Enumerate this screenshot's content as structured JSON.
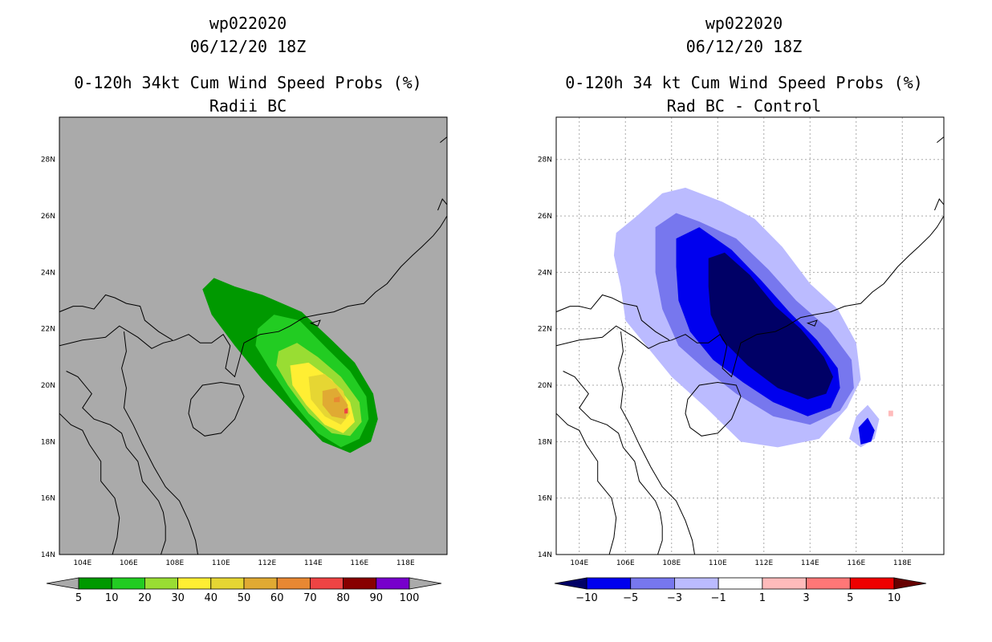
{
  "chart_data": [
    {
      "type": "heatmap",
      "title_lines": [
        "wp022020",
        "06/12/20 18Z",
        "0-120h 34kt Cum Wind Speed Probs (%)",
        "Radii BC"
      ],
      "x_ticks": [
        "104E",
        "106E",
        "108E",
        "110E",
        "112E",
        "114E",
        "116E",
        "118E"
      ],
      "y_ticks": [
        "14N",
        "16N",
        "18N",
        "20N",
        "22N",
        "24N",
        "26N",
        "28N"
      ],
      "xlim": [
        103,
        119.8
      ],
      "ylim": [
        14,
        29.5
      ],
      "grid": false,
      "colorbar": {
        "levels": [
          "5",
          "10",
          "20",
          "30",
          "40",
          "50",
          "60",
          "70",
          "80",
          "90",
          "100"
        ],
        "colors": [
          "#009900",
          "#22cc22",
          "#99dd33",
          "#ffee33",
          "#e6d633",
          "#e0aa33",
          "#e88833",
          "#ee4444",
          "#880000",
          "#7700cc"
        ],
        "under_color": "#aaaaaa",
        "over_color": "#aaaaaa"
      },
      "contours": [
        {
          "level": "5",
          "color": "#009900",
          "polygon": [
            [
              109.2,
              23.4
            ],
            [
              109.7,
              23.8
            ],
            [
              110.6,
              23.5
            ],
            [
              111.8,
              23.2
            ],
            [
              113.5,
              22.6
            ],
            [
              114.8,
              21.6
            ],
            [
              115.8,
              20.8
            ],
            [
              116.6,
              19.7
            ],
            [
              116.8,
              18.8
            ],
            [
              116.5,
              18.0
            ],
            [
              115.6,
              17.6
            ],
            [
              114.4,
              18.0
            ],
            [
              113.2,
              19.0
            ],
            [
              111.8,
              20.2
            ],
            [
              110.6,
              21.4
            ],
            [
              109.6,
              22.5
            ]
          ]
        },
        {
          "level": "10",
          "color": "#22cc22",
          "polygon": [
            [
              111.6,
              22.0
            ],
            [
              112.3,
              22.5
            ],
            [
              113.4,
              22.3
            ],
            [
              114.6,
              21.3
            ],
            [
              115.6,
              20.5
            ],
            [
              116.3,
              19.6
            ],
            [
              116.4,
              18.8
            ],
            [
              116.0,
              18.1
            ],
            [
              115.2,
              17.8
            ],
            [
              114.2,
              18.3
            ],
            [
              113.1,
              19.4
            ],
            [
              112.1,
              20.6
            ],
            [
              111.5,
              21.4
            ]
          ]
        },
        {
          "level": "20",
          "color": "#99dd33",
          "polygon": [
            [
              112.5,
              21.2
            ],
            [
              113.3,
              21.5
            ],
            [
              114.2,
              21.0
            ],
            [
              115.2,
              20.3
            ],
            [
              116.0,
              19.4
            ],
            [
              116.1,
              18.7
            ],
            [
              115.6,
              18.2
            ],
            [
              114.8,
              18.3
            ],
            [
              113.8,
              19.0
            ],
            [
              112.9,
              20.0
            ],
            [
              112.4,
              20.7
            ]
          ]
        },
        {
          "level": "30",
          "color": "#ffee33",
          "polygon": [
            [
              113.0,
              20.7
            ],
            [
              113.8,
              20.8
            ],
            [
              114.8,
              20.2
            ],
            [
              115.6,
              19.4
            ],
            [
              115.8,
              18.7
            ],
            [
              115.3,
              18.3
            ],
            [
              114.5,
              18.6
            ],
            [
              113.7,
              19.3
            ],
            [
              113.1,
              20.0
            ]
          ]
        },
        {
          "level": "40",
          "color": "#e6d633",
          "polygon": [
            [
              113.8,
              20.3
            ],
            [
              114.5,
              20.4
            ],
            [
              115.3,
              19.8
            ],
            [
              115.6,
              19.0
            ],
            [
              115.2,
              18.6
            ],
            [
              114.5,
              18.9
            ],
            [
              113.9,
              19.5
            ]
          ]
        },
        {
          "level": "50",
          "color": "#e0aa33",
          "polygon": [
            [
              114.4,
              19.8
            ],
            [
              115.0,
              19.9
            ],
            [
              115.5,
              19.3
            ],
            [
              115.4,
              18.8
            ],
            [
              114.8,
              18.9
            ],
            [
              114.4,
              19.3
            ]
          ]
        },
        {
          "level": "60",
          "color": "#e88833",
          "polygon": [
            [
              114.9,
              19.55
            ],
            [
              115.15,
              19.6
            ],
            [
              115.15,
              19.4
            ],
            [
              114.9,
              19.4
            ]
          ]
        },
        {
          "level": "70",
          "color": "#ee4444",
          "polygon": [
            [
              115.35,
              19.15
            ],
            [
              115.5,
              19.2
            ],
            [
              115.5,
              19.0
            ],
            [
              115.35,
              19.0
            ]
          ]
        }
      ]
    },
    {
      "type": "heatmap",
      "title_lines": [
        "wp022020",
        "06/12/20 18Z",
        "0-120h 34 kt Cum Wind Speed Probs (%)",
        "Rad BC - Control"
      ],
      "x_ticks": [
        "104E",
        "106E",
        "108E",
        "110E",
        "112E",
        "114E",
        "116E",
        "118E"
      ],
      "y_ticks": [
        "14N",
        "16N",
        "18N",
        "20N",
        "22N",
        "24N",
        "26N",
        "28N"
      ],
      "xlim": [
        103,
        119.8
      ],
      "ylim": [
        14,
        29.5
      ],
      "grid": true,
      "colorbar": {
        "levels": [
          "-10",
          "-5",
          "-3",
          "-1",
          "1",
          "3",
          "5",
          "10"
        ],
        "colors": [
          "#0000ee",
          "#7777ee",
          "#bbbbff",
          "#ffffff",
          "#ffbbbb",
          "#ff7777",
          "#ee0000"
        ],
        "under_color": "#000066",
        "over_color": "#660000"
      },
      "contours": [
        {
          "level": "-1",
          "color": "#bbbbff",
          "polygon": [
            [
              105.6,
              25.4
            ],
            [
              106.5,
              26.0
            ],
            [
              107.6,
              26.8
            ],
            [
              108.6,
              27.0
            ],
            [
              110.2,
              26.5
            ],
            [
              111.6,
              25.9
            ],
            [
              112.8,
              24.9
            ],
            [
              114.0,
              23.6
            ],
            [
              115.2,
              22.7
            ],
            [
              116.0,
              21.5
            ],
            [
              116.2,
              20.2
            ],
            [
              115.6,
              19.2
            ],
            [
              114.4,
              18.1
            ],
            [
              112.6,
              17.8
            ],
            [
              111.0,
              18.0
            ],
            [
              109.5,
              19.2
            ],
            [
              108.0,
              20.3
            ],
            [
              106.7,
              21.6
            ],
            [
              106.0,
              22.3
            ],
            [
              105.8,
              23.5
            ],
            [
              105.5,
              24.6
            ]
          ]
        },
        {
          "level": "-3",
          "color": "#7777ee",
          "polygon": [
            [
              107.3,
              25.6
            ],
            [
              108.2,
              26.1
            ],
            [
              109.2,
              25.8
            ],
            [
              110.8,
              25.2
            ],
            [
              112.2,
              24.1
            ],
            [
              113.4,
              23.0
            ],
            [
              114.8,
              22.0
            ],
            [
              115.8,
              20.9
            ],
            [
              115.9,
              19.9
            ],
            [
              115.3,
              19.1
            ],
            [
              114.0,
              18.6
            ],
            [
              112.4,
              18.9
            ],
            [
              110.8,
              19.7
            ],
            [
              109.4,
              20.6
            ],
            [
              108.3,
              21.4
            ],
            [
              107.6,
              22.7
            ],
            [
              107.3,
              24.0
            ]
          ]
        },
        {
          "level": "-5",
          "color": "#0000ee",
          "polygon": [
            [
              108.2,
              25.2
            ],
            [
              109.2,
              25.6
            ],
            [
              110.6,
              24.8
            ],
            [
              111.9,
              23.7
            ],
            [
              113.1,
              22.6
            ],
            [
              114.3,
              21.6
            ],
            [
              115.2,
              20.6
            ],
            [
              115.3,
              19.9
            ],
            [
              114.9,
              19.2
            ],
            [
              113.9,
              18.9
            ],
            [
              112.4,
              19.4
            ],
            [
              111.1,
              20.1
            ],
            [
              109.8,
              20.9
            ],
            [
              108.8,
              21.9
            ],
            [
              108.3,
              23.0
            ],
            [
              108.2,
              24.2
            ]
          ]
        },
        {
          "level": "-10",
          "color": "#000066",
          "polygon": [
            [
              109.6,
              24.5
            ],
            [
              110.3,
              24.7
            ],
            [
              111.4,
              23.9
            ],
            [
              112.5,
              22.8
            ],
            [
              113.6,
              22.0
            ],
            [
              114.6,
              21.0
            ],
            [
              115.0,
              20.3
            ],
            [
              114.7,
              19.7
            ],
            [
              113.9,
              19.5
            ],
            [
              112.6,
              19.9
            ],
            [
              111.3,
              20.7
            ],
            [
              110.2,
              21.6
            ],
            [
              109.7,
              22.5
            ],
            [
              109.6,
              23.5
            ]
          ]
        },
        {
          "level": "-1",
          "color": "#bbbbff",
          "polygon": [
            [
              116.0,
              18.9
            ],
            [
              116.5,
              19.3
            ],
            [
              117.0,
              18.8
            ],
            [
              116.8,
              18.1
            ],
            [
              116.2,
              17.8
            ],
            [
              115.7,
              18.1
            ]
          ]
        },
        {
          "level": "-5",
          "color": "#0000ee",
          "polygon": [
            [
              116.1,
              18.5
            ],
            [
              116.5,
              18.85
            ],
            [
              116.8,
              18.4
            ],
            [
              116.65,
              18.0
            ],
            [
              116.2,
              17.9
            ]
          ]
        },
        {
          "level": "1",
          "color": "#ffbbbb",
          "polygon": [
            [
              117.4,
              19.1
            ],
            [
              117.6,
              19.1
            ],
            [
              117.6,
              18.9
            ],
            [
              117.4,
              18.9
            ]
          ]
        }
      ]
    }
  ]
}
